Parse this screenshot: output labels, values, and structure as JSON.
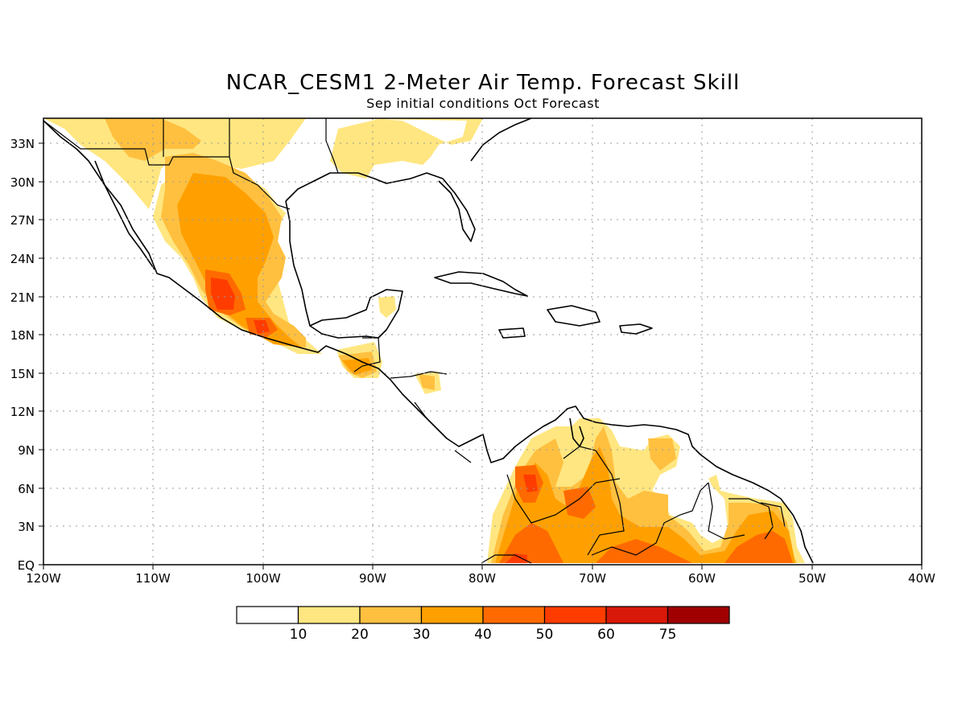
{
  "map": {
    "title": "NCAR_CESM1 2-Meter Air Temp. Forecast Skill",
    "subtitle": "Sep initial conditions  Oct Forecast",
    "lon_range": [
      -120,
      -40
    ],
    "lat_range": [
      0,
      35
    ],
    "grid": true,
    "lat_labels": [
      "33N",
      "30N",
      "27N",
      "24N",
      "21N",
      "18N",
      "15N",
      "12N",
      "9N",
      "6N",
      "3N",
      "EQ"
    ],
    "lon_labels": [
      "120W",
      "110W",
      "100W",
      "90W",
      "80W",
      "70W",
      "60W",
      "50W",
      "40W"
    ]
  },
  "colorbar": {
    "colors": [
      "#ffffff",
      "#ffe680",
      "#ffc040",
      "#ffa000",
      "#ff6a00",
      "#ff3c00",
      "#d81808",
      "#a00000"
    ],
    "labels": [
      "10",
      "20",
      "30",
      "40",
      "50",
      "60",
      "75"
    ]
  }
}
